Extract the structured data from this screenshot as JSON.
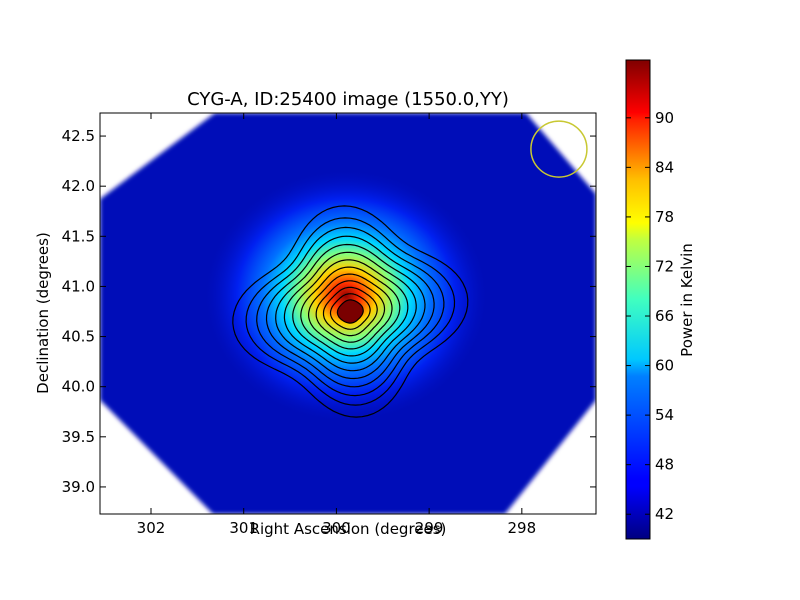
{
  "chart_data": {
    "type": "heatmap",
    "title": "CYG-A, ID:25400 image (1550.0,YY)",
    "xlabel": "Right Ascension (degrees)",
    "ylabel": "Declination (degrees)",
    "xlim": [
      302.55,
      297.2
    ],
    "ylim": [
      38.73,
      42.73
    ],
    "x_inverted": true,
    "xticks": [
      {
        "value": 302,
        "label": "302"
      },
      {
        "value": 301,
        "label": "301"
      },
      {
        "value": 300,
        "label": "300"
      },
      {
        "value": 299,
        "label": "299"
      },
      {
        "value": 298,
        "label": "298"
      }
    ],
    "yticks": [
      {
        "value": 39.0,
        "label": "39.0"
      },
      {
        "value": 39.5,
        "label": "39.5"
      },
      {
        "value": 40.0,
        "label": "40.0"
      },
      {
        "value": 40.5,
        "label": "40.5"
      },
      {
        "value": 41.0,
        "label": "41.0"
      },
      {
        "value": 41.5,
        "label": "41.5"
      },
      {
        "value": 42.0,
        "label": "42.0"
      },
      {
        "value": 42.5,
        "label": "42.5"
      }
    ],
    "peak": {
      "ra": 299.85,
      "dec": 40.75,
      "value": 95
    },
    "background_value": 41,
    "contour_count": 13,
    "beam_marker": {
      "ra": 297.6,
      "dec": 42.37,
      "color": "#c8c832"
    },
    "colorbar": {
      "label": "Power in Kelvin",
      "colormap": "jet",
      "range": [
        39,
        97
      ],
      "ticks": [
        42,
        48,
        54,
        60,
        66,
        72,
        78,
        84,
        90
      ]
    },
    "grid": false
  }
}
